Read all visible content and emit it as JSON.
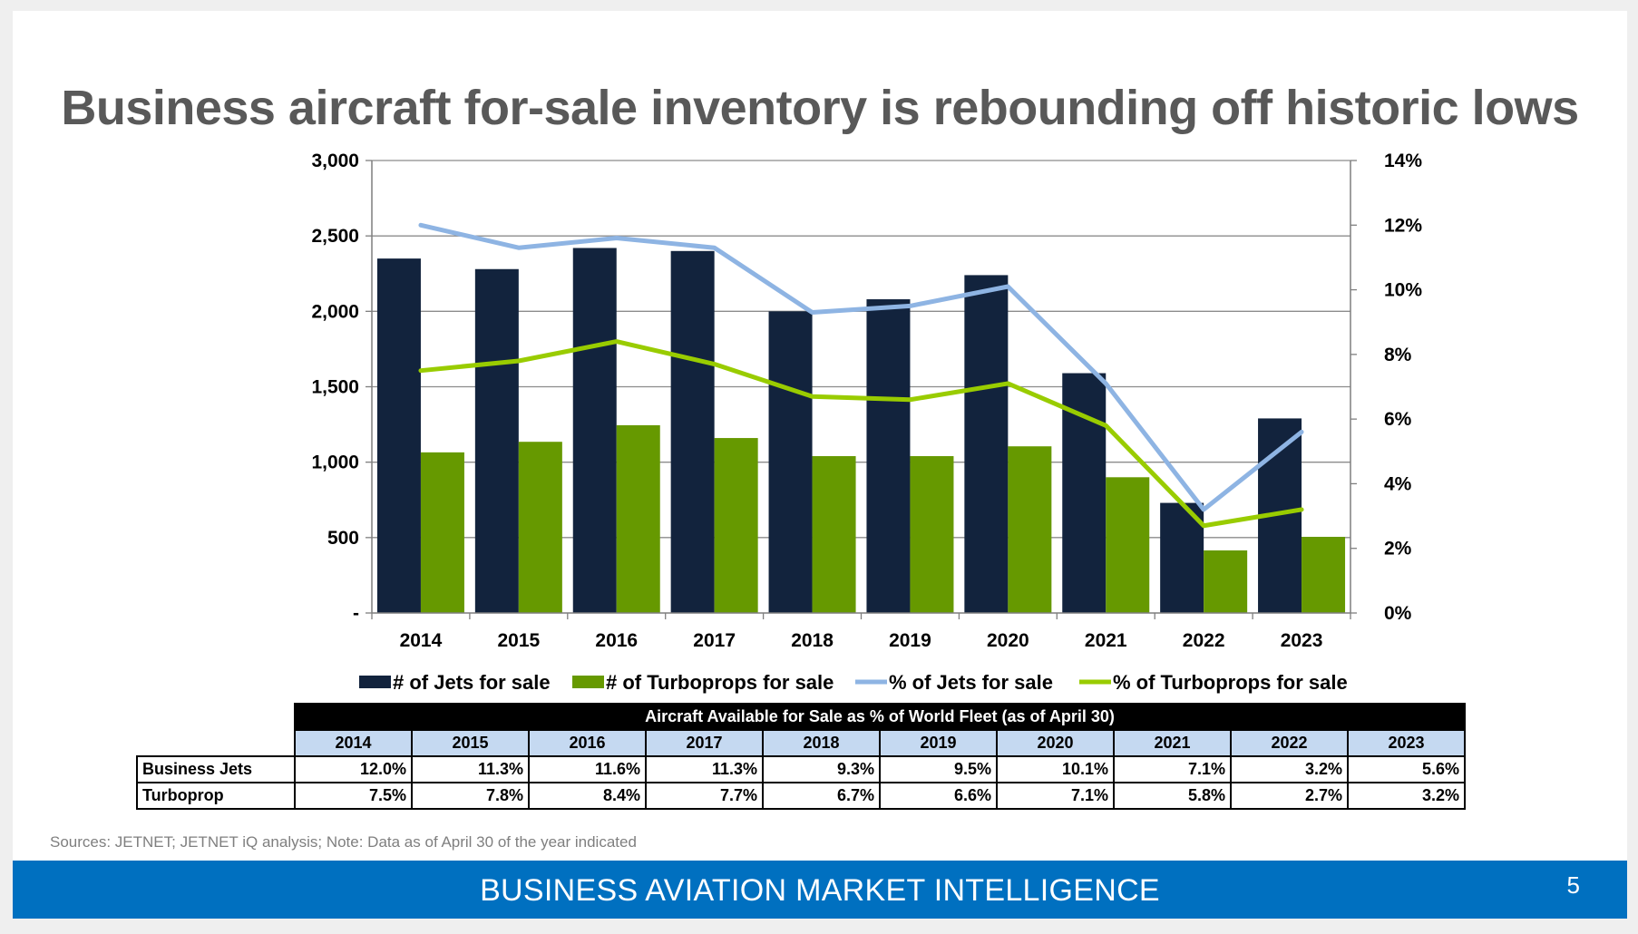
{
  "title": "Business aircraft for-sale inventory is rebounding off historic lows",
  "chart_data": {
    "type": "bar",
    "categories": [
      "2014",
      "2015",
      "2016",
      "2017",
      "2018",
      "2019",
      "2020",
      "2021",
      "2022",
      "2023"
    ],
    "series": [
      {
        "name": "# of Jets for sale",
        "type": "bar",
        "axis": "left",
        "color": "#12233d",
        "values": [
          2350,
          2280,
          2420,
          2400,
          2000,
          2080,
          2240,
          1590,
          730,
          1290
        ]
      },
      {
        "name": "# of Turboprops for sale",
        "type": "bar",
        "axis": "left",
        "color": "#669900",
        "values": [
          1065,
          1135,
          1245,
          1160,
          1040,
          1040,
          1105,
          900,
          415,
          505
        ]
      },
      {
        "name": "% of Jets for sale",
        "type": "line",
        "axis": "right",
        "color": "#8eb4e3",
        "values": [
          12.0,
          11.3,
          11.6,
          11.3,
          9.3,
          9.5,
          10.1,
          7.1,
          3.2,
          5.6
        ]
      },
      {
        "name": "% of Turboprops for sale",
        "type": "line",
        "axis": "right",
        "color": "#99cc00",
        "values": [
          7.5,
          7.8,
          8.4,
          7.7,
          6.7,
          6.6,
          7.1,
          5.8,
          2.7,
          3.2
        ]
      }
    ],
    "y_left": {
      "ylim": [
        0,
        3000
      ],
      "ticks": [
        0,
        500,
        1000,
        1500,
        2000,
        2500,
        3000
      ],
      "tick_labels": [
        "-",
        "500",
        "1,000",
        "1,500",
        "2,000",
        "2,500",
        "3,000"
      ]
    },
    "y_right": {
      "ylim": [
        0,
        14
      ],
      "ticks": [
        0,
        2,
        4,
        6,
        8,
        10,
        12,
        14
      ],
      "tick_labels": [
        "0%",
        "2%",
        "4%",
        "6%",
        "8%",
        "10%",
        "12%",
        "14%"
      ]
    },
    "grid": true,
    "legend_position": "bottom"
  },
  "table": {
    "caption": "Aircraft Available for Sale as % of World Fleet (as of April 30)",
    "years": [
      "2014",
      "2015",
      "2016",
      "2017",
      "2018",
      "2019",
      "2020",
      "2021",
      "2022",
      "2023"
    ],
    "rows": [
      {
        "label": "Business Jets",
        "values": [
          "12.0%",
          "11.3%",
          "11.6%",
          "11.3%",
          "9.3%",
          "9.5%",
          "10.1%",
          "7.1%",
          "3.2%",
          "5.6%"
        ]
      },
      {
        "label": "Turboprop",
        "values": [
          "7.5%",
          "7.8%",
          "8.4%",
          "7.7%",
          "6.7%",
          "6.6%",
          "7.1%",
          "5.8%",
          "2.7%",
          "3.2%"
        ]
      }
    ]
  },
  "sources": "Sources: JETNET; JETNET iQ analysis; Note: Data as of April 30 of the year indicated",
  "footer": {
    "title": "BUSINESS AVIATION MARKET INTELLIGENCE",
    "page": "5"
  }
}
